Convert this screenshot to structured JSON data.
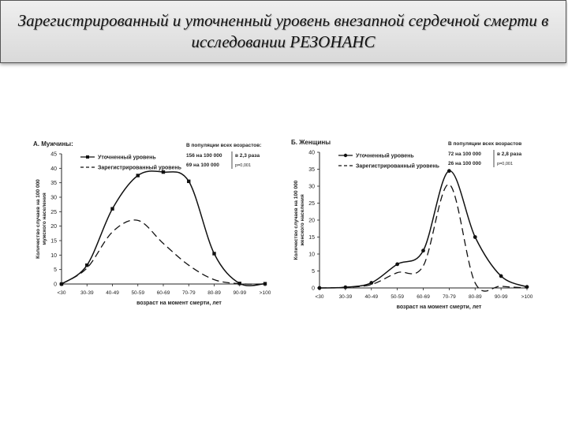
{
  "slide": {
    "title_line1": "Зарегистрированный и уточненный уровень внезапной сердечной смерти в",
    "title_line2": "исследовании РЕЗОНАНС"
  },
  "chart_data": [
    {
      "type": "line",
      "panel_title": "А. Мужчины:",
      "ylabel_line1": "Количество случаев на 100 000",
      "ylabel_line2": "мужского населения",
      "xlabel": "возраст на момент смерти, лет",
      "ylim": [
        0,
        45
      ],
      "yticks": [
        0,
        5,
        10,
        15,
        20,
        25,
        30,
        35,
        40,
        45
      ],
      "categories": [
        "<30",
        "30-39",
        "40-49",
        "50-59",
        "60-69",
        "70-79",
        "80-89",
        "90-99",
        ">100"
      ],
      "series": [
        {
          "name": "Уточненный уровень",
          "style": "solid",
          "marker": "square",
          "values": [
            0,
            6.5,
            26,
            37.5,
            38.7,
            35.5,
            10.5,
            0.2,
            0.1
          ]
        },
        {
          "name": "Зарегистрированный уровень",
          "style": "dashed",
          "marker": "none",
          "values": [
            0,
            5.5,
            18,
            22,
            14,
            6.5,
            1.5,
            0.1,
            0
          ]
        }
      ],
      "stats": {
        "header": "В популяции всех возрастов:",
        "line1": "156 на 100 000",
        "line2": "69 на 100 000",
        "ratio": "в 2,3 раза",
        "p": "p=0,001"
      }
    },
    {
      "type": "line",
      "panel_title": "Б. Женщины",
      "ylabel_line1": "Количество случаев на 100 000",
      "ylabel_line2": "женского населения",
      "xlabel": "возраст на момент смерти, лет",
      "ylim": [
        0,
        40
      ],
      "yticks": [
        0,
        5,
        10,
        15,
        20,
        25,
        30,
        35,
        40
      ],
      "categories": [
        "<30",
        "30-39",
        "40-49",
        "50-59",
        "60-69",
        "70-79",
        "80-89",
        "90-99",
        ">100"
      ],
      "series": [
        {
          "name": "Уточненный уровень",
          "style": "solid",
          "marker": "circle",
          "values": [
            0,
            0.2,
            1.5,
            7,
            11,
            34.5,
            15,
            3.5,
            0.3
          ]
        },
        {
          "name": "Зарегистрированный уровень",
          "style": "dashed",
          "marker": "none",
          "values": [
            0,
            0.2,
            1,
            4.5,
            6.5,
            30.5,
            1.5,
            0.5,
            0
          ]
        }
      ],
      "stats": {
        "header": "В популяции всех возрастов",
        "line1": "72 на 100 000",
        "line2": "26 на 100 000",
        "ratio": "в 2,8 раза",
        "p": "p=0,001"
      }
    }
  ]
}
